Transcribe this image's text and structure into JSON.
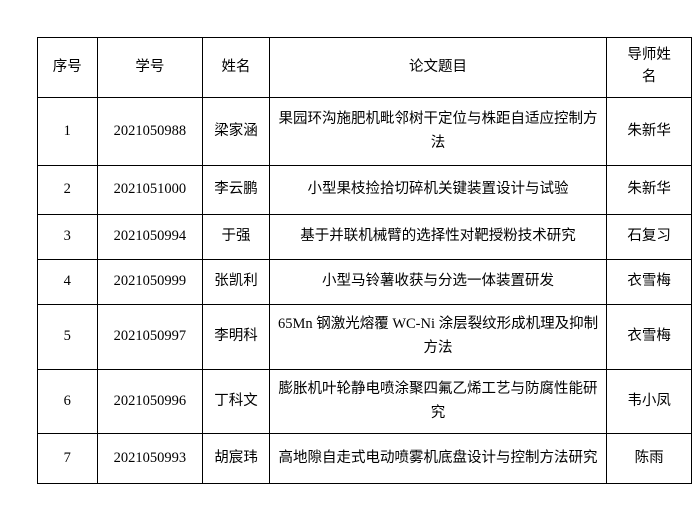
{
  "page": {
    "background_color": "#ffffff",
    "border_color": "#000000",
    "text_color": "#000000"
  },
  "table": {
    "columns": [
      {
        "key": "index",
        "label": "序号"
      },
      {
        "key": "student_id",
        "label": "学号"
      },
      {
        "key": "name",
        "label": "姓名"
      },
      {
        "key": "title",
        "label": "论文题目"
      },
      {
        "key": "advisor",
        "label": "导师姓名"
      }
    ],
    "rows": [
      {
        "index": "1",
        "student_id": "2021050988",
        "name": "梁家涵",
        "title": "果园环沟施肥机毗邻树干定位与株距自适应控制方法",
        "advisor": "朱新华"
      },
      {
        "index": "2",
        "student_id": "2021051000",
        "name": "李云鹏",
        "title": "小型果枝捡拾切碎机关键装置设计与试验",
        "advisor": "朱新华"
      },
      {
        "index": "3",
        "student_id": "2021050994",
        "name": "于强",
        "title": "基于并联机械臂的选择性对靶授粉技术研究",
        "advisor": "石复习"
      },
      {
        "index": "4",
        "student_id": "2021050999",
        "name": "张凯利",
        "title": "小型马铃薯收获与分选一体装置研发",
        "advisor": "衣雪梅"
      },
      {
        "index": "5",
        "student_id": "2021050997",
        "name": "李明科",
        "title": "65Mn 钢激光熔覆 WC-Ni 涂层裂纹形成机理及抑制方法",
        "advisor": "衣雪梅"
      },
      {
        "index": "6",
        "student_id": "2021050996",
        "name": "丁科文",
        "title": "膨胀机叶轮静电喷涂聚四氟乙烯工艺与防腐性能研究",
        "advisor": "韦小凤"
      },
      {
        "index": "7",
        "student_id": "2021050993",
        "name": "胡宸玮",
        "title": "高地隙自走式电动喷雾机底盘设计与控制方法研究",
        "advisor": "陈雨"
      }
    ]
  }
}
